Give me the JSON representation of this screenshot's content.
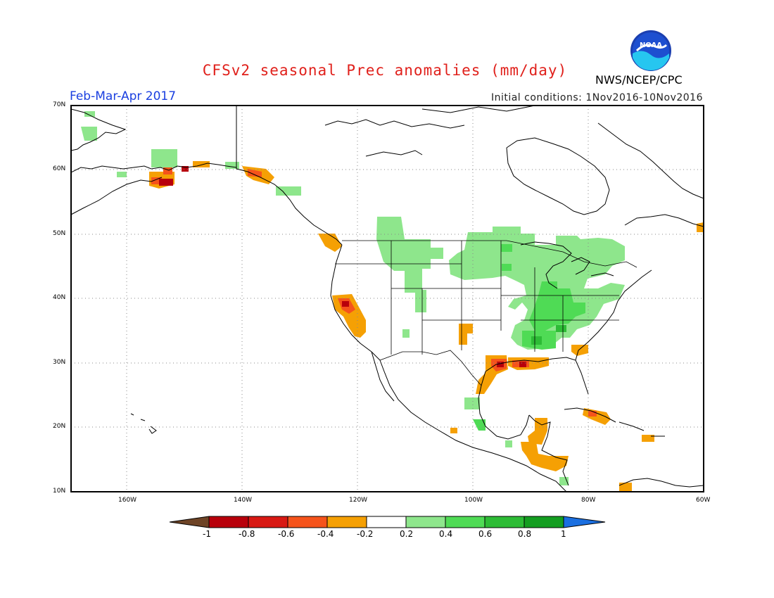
{
  "header": {
    "title": "CFSv2 seasonal Prec anomalies (mm/day)",
    "agency": "NWS/NCEP/CPC",
    "logo_text": "NOAA",
    "period": "Feb-Mar-Apr 2017",
    "initial_conditions": "Initial conditions: 1Nov2016-10Nov2016"
  },
  "map": {
    "lat_labels": [
      "70N",
      "60N",
      "50N",
      "40N",
      "30N",
      "20N",
      "10N"
    ],
    "lon_labels": [
      "160W",
      "140W",
      "120W",
      "100W",
      "80W",
      "60W"
    ],
    "extent": {
      "lon_min": -172,
      "lon_max": -60,
      "lat_min": 10,
      "lat_max": 70
    }
  },
  "colorbar": {
    "labels": [
      "-1",
      "-0.8",
      "-0.6",
      "-0.4",
      "-0.2",
      "0.2",
      "0.4",
      "0.6",
      "0.8",
      "1"
    ],
    "colors": {
      "lt_m1": "#6e4426",
      "m1_m08": "#b8000b",
      "m08_m06": "#d81913",
      "m06_m04": "#f5531b",
      "m04_m02": "#f5a004",
      "m02_02": "#ffffff",
      "p02_p04": "#8ee68c",
      "p04_p06": "#4fdb55",
      "p06_p08": "#2dbc36",
      "p08_p1": "#149e21",
      "gt_p1": "#1b6fe0"
    }
  }
}
